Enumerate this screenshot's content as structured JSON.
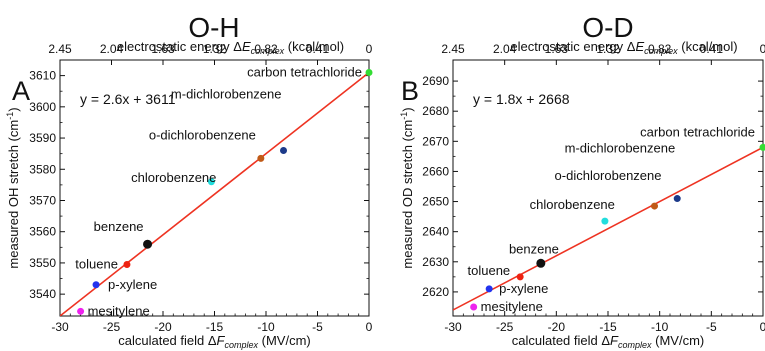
{
  "chart_data": [
    {
      "type": "scatter",
      "panel_letter": "A",
      "title": "O-H",
      "xlabel": "calculated field ΔF_complex (MV/cm)",
      "xlabel_parts": {
        "pre": "calculated field Δ",
        "sym": "F",
        "sub": "complex",
        "post": " (MV/cm)"
      },
      "ylabel": "measured OH stretch (cm-1)",
      "ylabel_parts": {
        "pre": "measured OH stretch (cm",
        "sup": "-1",
        "post": ")"
      },
      "top_axis_label": "electrostatic energy ΔE_complex (kcal/mol)",
      "top_axis_parts": {
        "pre": "electrostatic energy Δ",
        "sym": "E",
        "sub": "complex",
        "post": " (kcal/mol)"
      },
      "xlim": [
        -30,
        0
      ],
      "ylim": [
        3533,
        3615
      ],
      "x_ticks": [
        "-30",
        "-25",
        "-20",
        "-15",
        "-10",
        "-5",
        "0"
      ],
      "y_ticks": [
        "3540",
        "3550",
        "3560",
        "3570",
        "3580",
        "3590",
        "3600",
        "3610"
      ],
      "top_ticks": [
        "2.45",
        "2.04",
        "1.63",
        "1.32",
        "0.82",
        "0.41",
        "0"
      ],
      "equation": "y = 2.6x + 3611",
      "fit": {
        "slope": 2.6,
        "intercept": 3611,
        "x_range": [
          -30,
          0
        ],
        "color": "#ee3322"
      },
      "points": [
        {
          "name": "carbon tetrachloride",
          "x": 0,
          "y": 3611,
          "color": "#33dd33"
        },
        {
          "name": "m-dichlorobenzene",
          "x": -8.3,
          "y": 3586,
          "color": "#1c3a8a"
        },
        {
          "name": "o-dichlorobenzene",
          "x": -10.5,
          "y": 3583.5,
          "color": "#c05a17"
        },
        {
          "name": "chlorobenzene",
          "x": -15.3,
          "y": 3576,
          "color": "#22dddd"
        },
        {
          "name": "benzene",
          "x": -21.5,
          "y": 3556,
          "color": "#111111"
        },
        {
          "name": "toluene",
          "x": -23.5,
          "y": 3549.5,
          "color": "#ee2211"
        },
        {
          "name": "p-xylene",
          "x": -26.5,
          "y": 3543,
          "color": "#2233ee"
        },
        {
          "name": "mesitylene",
          "x": -28,
          "y": 3534.5,
          "color": "#ee22ee"
        }
      ]
    },
    {
      "type": "scatter",
      "panel_letter": "B",
      "title": "O-D",
      "xlabel": "calculated field ΔF_complex (MV/cm)",
      "xlabel_parts": {
        "pre": "calculated field Δ",
        "sym": "F",
        "sub": "complex",
        "post": " (MV/cm)"
      },
      "ylabel": "measured OD stretch (cm-1)",
      "ylabel_parts": {
        "pre": "measured OD stretch (cm",
        "sup": "-1",
        "post": ")"
      },
      "top_axis_label": "electrostatic energy ΔE_complex (kcal/mol)",
      "top_axis_parts": {
        "pre": "electrostatic energy Δ",
        "sym": "E",
        "sub": "complex",
        "post": " (kcal/mol)"
      },
      "xlim": [
        -30,
        0
      ],
      "ylim": [
        2612,
        2697
      ],
      "x_ticks": [
        "-30",
        "-25",
        "-20",
        "-15",
        "-10",
        "-5",
        "0"
      ],
      "y_ticks": [
        "2620",
        "2630",
        "2640",
        "2650",
        "2660",
        "2670",
        "2680",
        "2690"
      ],
      "top_ticks": [
        "2.45",
        "2.04",
        "1.63",
        "1.32",
        "0.82",
        "0.41",
        "0"
      ],
      "equation": "y = 1.8x + 2668",
      "fit": {
        "slope": 1.8,
        "intercept": 2668,
        "x_range": [
          -30,
          0
        ],
        "color": "#ee3322"
      },
      "points": [
        {
          "name": "carbon tetrachloride",
          "x": 0,
          "y": 2668,
          "color": "#33dd33"
        },
        {
          "name": "m-dichlorobenzene",
          "x": -8.3,
          "y": 2651,
          "color": "#1c3a8a"
        },
        {
          "name": "o-dichlorobenzene",
          "x": -10.5,
          "y": 2648.5,
          "color": "#c05a17"
        },
        {
          "name": "chlorobenzene",
          "x": -15.3,
          "y": 2643.5,
          "color": "#22dddd"
        },
        {
          "name": "benzene",
          "x": -21.5,
          "y": 2629.5,
          "color": "#111111"
        },
        {
          "name": "toluene",
          "x": -23.5,
          "y": 2625,
          "color": "#ee2211"
        },
        {
          "name": "p-xylene",
          "x": -26.5,
          "y": 2621,
          "color": "#2233ee"
        },
        {
          "name": "mesitylene",
          "x": -28,
          "y": 2615,
          "color": "#ee22ee"
        }
      ]
    }
  ]
}
